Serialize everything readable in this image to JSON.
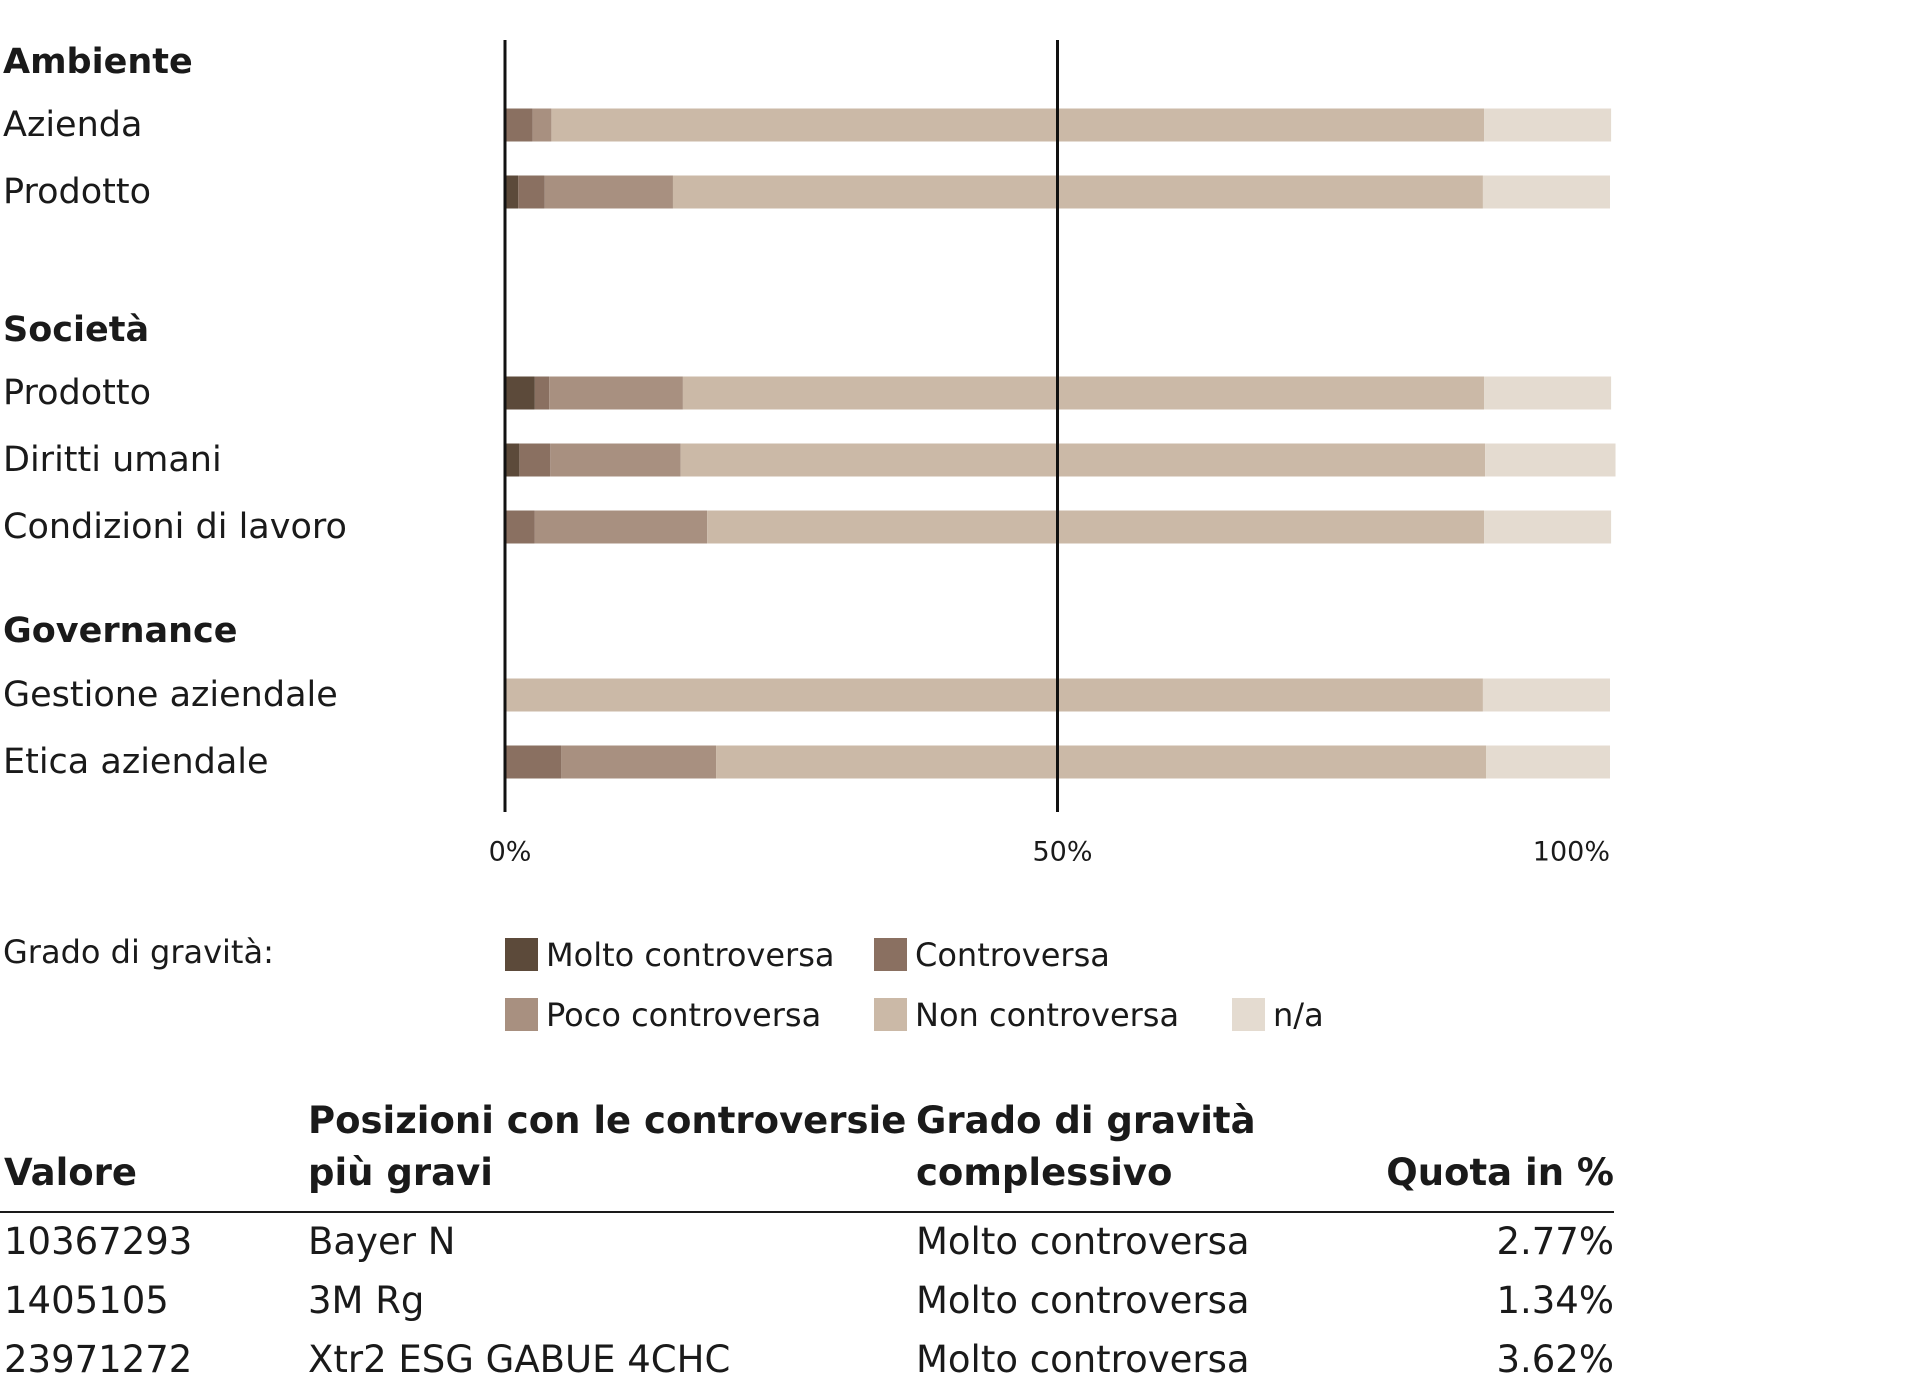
{
  "chart_data": {
    "type": "bar",
    "orientation": "horizontal",
    "stacked": true,
    "groups": [
      {
        "name": "Ambiente",
        "categories": [
          "Azienda",
          "Prodotto"
        ]
      },
      {
        "name": "Società",
        "categories": [
          "Prodotto",
          "Diritti umani",
          "Condizioni di lavoro"
        ]
      },
      {
        "name": "Governance",
        "categories": [
          "Gestione aziendale",
          "Etica aziendale"
        ]
      }
    ],
    "categories": [
      "Azienda",
      "Prodotto",
      "Prodotto",
      "Diritti umani",
      "Condizioni di lavoro",
      "Gestione aziendale",
      "Etica aziendale"
    ],
    "series": [
      {
        "name": "Molto controversa",
        "color": "#5c4a3a",
        "values": [
          0.0,
          1.2,
          2.7,
          1.3,
          0.0,
          0.0,
          0.0
        ]
      },
      {
        "name": "Controversa",
        "color": "#8a7061",
        "values": [
          2.5,
          2.4,
          1.3,
          2.8,
          2.7,
          0.0,
          5.1
        ]
      },
      {
        "name": "Poco controversa",
        "color": "#a89080",
        "values": [
          1.7,
          11.6,
          12.1,
          11.8,
          15.6,
          0.0,
          14.0
        ]
      },
      {
        "name": "Non controversa",
        "color": "#cbb9a7",
        "values": [
          84.4,
          73.3,
          72.5,
          72.8,
          70.3,
          88.5,
          69.7
        ]
      },
      {
        "name": "n/a",
        "color": "#e4dbd0",
        "values": [
          11.5,
          11.5,
          11.5,
          11.8,
          11.5,
          11.5,
          11.2
        ]
      }
    ],
    "xlim": [
      0,
      100
    ],
    "xticks": [
      "0%",
      "50%",
      "100%"
    ],
    "reference_lines": [
      0,
      50
    ],
    "legend_title": "Grado di gravità:",
    "legend_position": "bottom"
  },
  "table": {
    "headers": [
      "Valore",
      "Posizioni con le controversie più gravi",
      "Grado di gravità complessivo",
      "Quota in %"
    ],
    "rows": [
      [
        "10367293",
        "Bayer N",
        "Molto controversa",
        "2.77%"
      ],
      [
        "1405105",
        "3M Rg",
        "Molto controversa",
        "1.34%"
      ],
      [
        "23971272",
        "Xtr2 ESG GABUE 4CHC",
        "Molto controversa",
        "3.62%"
      ]
    ]
  }
}
